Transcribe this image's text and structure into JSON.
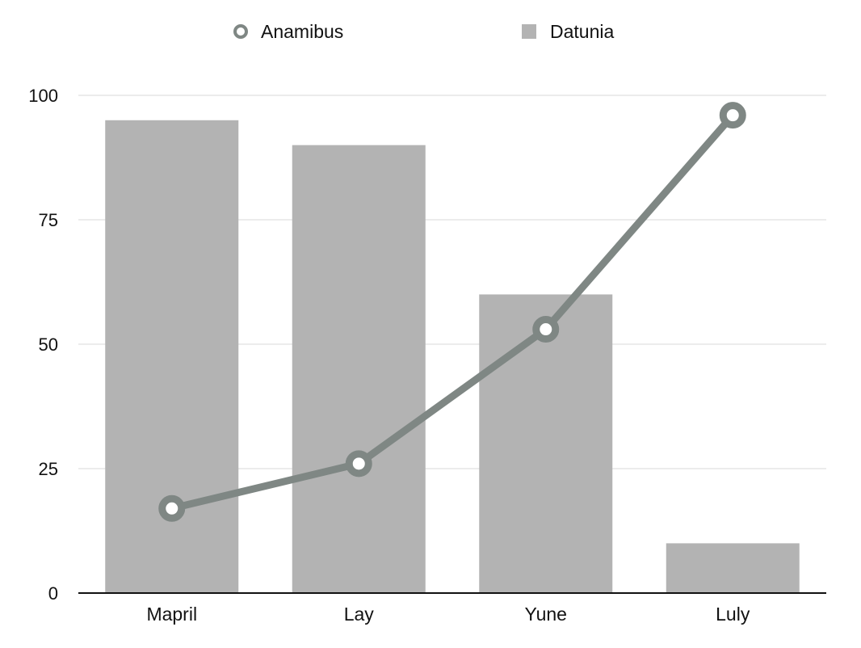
{
  "chart_data": {
    "type": "bar",
    "categories": [
      "Mapril",
      "Lay",
      "Yune",
      "Luly"
    ],
    "series": [
      {
        "name": "Datunia",
        "type": "bar",
        "values": [
          95,
          90,
          60,
          10
        ],
        "color": "#b3b3b3"
      },
      {
        "name": "Anamibus",
        "type": "line",
        "values": [
          17,
          26,
          53,
          96
        ],
        "color": "#7f8784"
      }
    ],
    "ylim": [
      0,
      100
    ],
    "yticks": [
      0,
      25,
      50,
      75,
      100
    ],
    "grid": true,
    "legend_position": "top-center",
    "title": "",
    "xlabel": "",
    "ylabel": ""
  }
}
